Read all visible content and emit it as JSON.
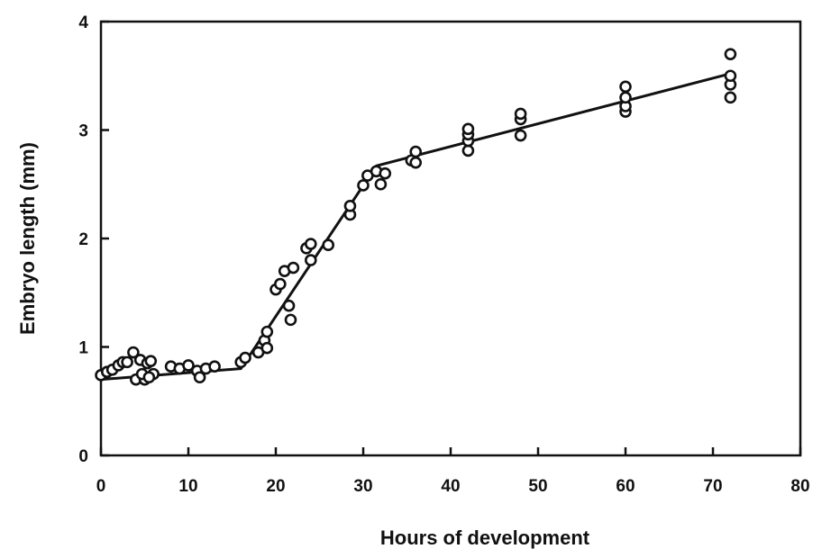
{
  "chart_data": {
    "type": "scatter",
    "xlabel": "Hours of development",
    "ylabel": "Embryo length (mm)",
    "xlim": [
      0,
      80
    ],
    "ylim": [
      0,
      4
    ],
    "xticks": [
      0,
      10,
      20,
      30,
      40,
      50,
      60,
      70,
      80
    ],
    "yticks": [
      0,
      1,
      2,
      3,
      4
    ],
    "grid": false,
    "points": [
      [
        0,
        0.74
      ],
      [
        0.7,
        0.77
      ],
      [
        1.3,
        0.79
      ],
      [
        2,
        0.83
      ],
      [
        2.5,
        0.86
      ],
      [
        3,
        0.86
      ],
      [
        3.7,
        0.95
      ],
      [
        4,
        0.7
      ],
      [
        4.5,
        0.88
      ],
      [
        5,
        0.7
      ],
      [
        5.3,
        0.85
      ],
      [
        5.7,
        0.87
      ],
      [
        6,
        0.75
      ],
      [
        4.7,
        0.75
      ],
      [
        5.5,
        0.72
      ],
      [
        8,
        0.82
      ],
      [
        9,
        0.8
      ],
      [
        10,
        0.83
      ],
      [
        11,
        0.78
      ],
      [
        11.3,
        0.72
      ],
      [
        12,
        0.8
      ],
      [
        13,
        0.82
      ],
      [
        16,
        0.86
      ],
      [
        16.5,
        0.9
      ],
      [
        18,
        0.95
      ],
      [
        18.7,
        1.06
      ],
      [
        19,
        1.14
      ],
      [
        19,
        0.99
      ],
      [
        20,
        1.53
      ],
      [
        20.5,
        1.58
      ],
      [
        21,
        1.7
      ],
      [
        21.5,
        1.38
      ],
      [
        21.7,
        1.25
      ],
      [
        22,
        1.73
      ],
      [
        23.5,
        1.91
      ],
      [
        24,
        1.95
      ],
      [
        24,
        1.8
      ],
      [
        26,
        1.94
      ],
      [
        28.5,
        2.22
      ],
      [
        28.5,
        2.3
      ],
      [
        30,
        2.49
      ],
      [
        30.5,
        2.58
      ],
      [
        31.5,
        2.62
      ],
      [
        32,
        2.5
      ],
      [
        32.5,
        2.6
      ],
      [
        35.5,
        2.72
      ],
      [
        36,
        2.8
      ],
      [
        36,
        2.7
      ],
      [
        42,
        2.81
      ],
      [
        42,
        2.9
      ],
      [
        42,
        2.96
      ],
      [
        42,
        3.01
      ],
      [
        48,
        2.95
      ],
      [
        48,
        3.1
      ],
      [
        48,
        3.15
      ],
      [
        60,
        3.17
      ],
      [
        60,
        3.22
      ],
      [
        60,
        3.3
      ],
      [
        60,
        3.4
      ],
      [
        72,
        3.3
      ],
      [
        72,
        3.42
      ],
      [
        72,
        3.5
      ],
      [
        72,
        3.7
      ]
    ],
    "fit_line": [
      [
        0,
        0.7
      ],
      [
        16,
        0.8
      ],
      [
        31.5,
        2.67
      ],
      [
        72,
        3.52
      ]
    ]
  }
}
